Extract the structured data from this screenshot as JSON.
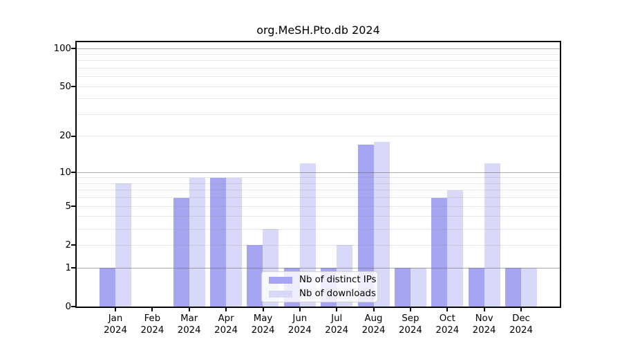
{
  "chart_data": {
    "type": "bar",
    "title": "org.MeSH.Pto.db 2024",
    "categories": [
      "Jan",
      "Feb",
      "Mar",
      "Apr",
      "May",
      "Jun",
      "Jul",
      "Aug",
      "Sep",
      "Oct",
      "Nov",
      "Dec"
    ],
    "category_second_line": "2024",
    "series": [
      {
        "name": "Nb of distinct IPs",
        "color": "#a5a5f2",
        "values": [
          1,
          0,
          6,
          9,
          2,
          1,
          1,
          17,
          1,
          6,
          1,
          1
        ]
      },
      {
        "name": "Nb of downloads",
        "color": "#d8d8f8",
        "values": [
          8,
          0,
          9,
          9,
          3,
          12,
          2,
          18,
          1,
          7,
          12,
          1
        ]
      }
    ],
    "y_axis": {
      "scale": "log10(1+v)",
      "tick_values": [
        0,
        1,
        2,
        5,
        10,
        20,
        50,
        100
      ],
      "tick_labels": [
        "0",
        "1",
        "2",
        "5",
        "10",
        "20",
        "50",
        "100"
      ],
      "major_gridlines": [
        1,
        10,
        100
      ],
      "minor_gridlines": [
        2,
        3,
        4,
        5,
        6,
        7,
        8,
        9,
        20,
        30,
        40,
        50,
        60,
        70,
        80,
        90
      ],
      "max": 100
    },
    "xlabel": "",
    "ylabel": "",
    "grid": "on",
    "legend": {
      "position": "lower-center",
      "entries": [
        "Nb of distinct IPs",
        "Nb of downloads"
      ]
    },
    "colors": {
      "distinct_ips_bar": "#a5a5f2",
      "downloads_bar": "#d8d8f8",
      "major_grid": "#b0b0b0",
      "minor_grid": "#e6e6e6",
      "axis": "#000000",
      "background": "#ffffff"
    }
  }
}
